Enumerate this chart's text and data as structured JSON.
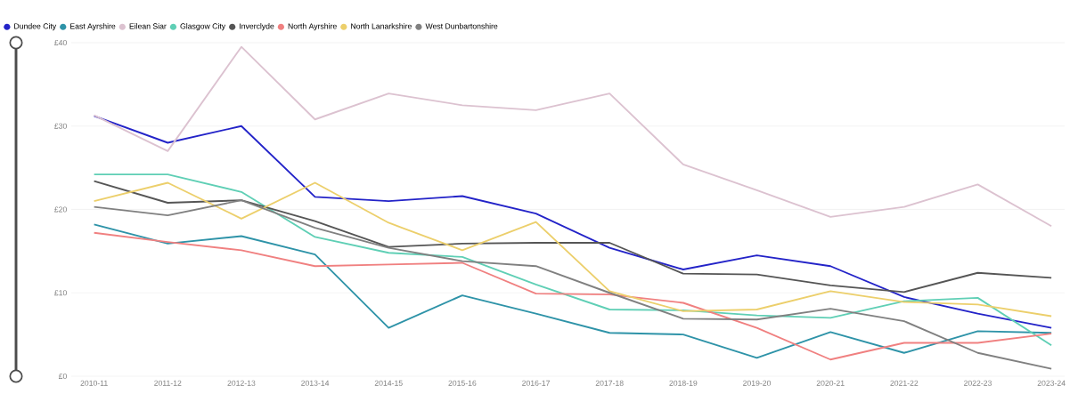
{
  "chart_data": {
    "type": "line",
    "categories": [
      "2010-11",
      "2011-12",
      "2012-13",
      "2013-14",
      "2014-15",
      "2015-16",
      "2016-17",
      "2017-18",
      "2018-19",
      "2019-20",
      "2020-21",
      "2021-22",
      "2022-23",
      "2023-24"
    ],
    "series": [
      {
        "name": "Dundee City",
        "color": "#2323c8",
        "values": [
          31.2,
          28,
          30,
          21.5,
          21,
          21.6,
          19.5,
          15.4,
          12.8,
          14.5,
          13.2,
          9.5,
          7.5,
          5.8
        ]
      },
      {
        "name": "East Ayrshire",
        "color": "#2e93a8",
        "values": [
          18.2,
          15.9,
          16.8,
          14.6,
          5.8,
          9.7,
          7.5,
          5.2,
          5,
          2.2,
          5.3,
          2.8,
          5.4,
          5.2
        ]
      },
      {
        "name": "Eilean Siar",
        "color": "#dcc2d0",
        "values": [
          31.3,
          27,
          39.5,
          30.8,
          33.9,
          32.5,
          31.9,
          33.9,
          25.4,
          22.3,
          19.1,
          20.3,
          23,
          18
        ]
      },
      {
        "name": "Glasgow City",
        "color": "#5fcfb5",
        "values": [
          24.2,
          24.2,
          22.1,
          16.7,
          14.8,
          14.3,
          11,
          8,
          7.9,
          7.3,
          7,
          9,
          9.4,
          3.7
        ]
      },
      {
        "name": "Inverclyde",
        "color": "#555555",
        "values": [
          23.4,
          20.8,
          21.1,
          18.6,
          15.5,
          15.9,
          16,
          16,
          12.3,
          12.2,
          10.9,
          10.1,
          12.4,
          11.8
        ]
      },
      {
        "name": "North Ayrshire",
        "color": "#f08080",
        "values": [
          17.2,
          16.1,
          15.1,
          13.2,
          13.4,
          13.6,
          9.9,
          9.8,
          8.8,
          5.8,
          2,
          4,
          4,
          5.1
        ]
      },
      {
        "name": "North Lanarkshire",
        "color": "#eccf6b",
        "values": [
          21,
          23.2,
          18.9,
          23.2,
          18.4,
          15.1,
          18.5,
          10.2,
          7.8,
          8,
          10.2,
          8.9,
          8.6,
          7.2
        ]
      },
      {
        "name": "West Dunbartonshire",
        "color": "#808080",
        "values": [
          20.3,
          19.3,
          21.1,
          17.8,
          15.4,
          13.8,
          13.2,
          10,
          6.9,
          6.8,
          8.1,
          6.6,
          2.8,
          0.9
        ]
      }
    ],
    "ylim": [
      0,
      40
    ],
    "yticks": [
      {
        "value": 0,
        "label": "£0"
      },
      {
        "value": 10,
        "label": "£10"
      },
      {
        "value": 20,
        "label": "£20"
      },
      {
        "value": 30,
        "label": "£30"
      },
      {
        "value": 40,
        "label": "£40"
      }
    ],
    "grid": "y",
    "legend": "top left",
    "line_style": "solid"
  }
}
